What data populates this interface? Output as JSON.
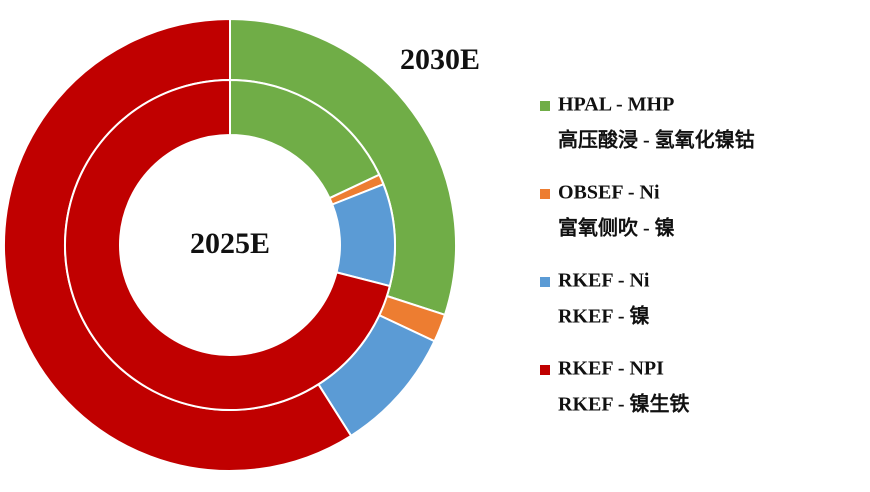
{
  "chart_data": {
    "type": "donut",
    "categories": [
      "HPAL - MHP",
      "OBSEF - Ni",
      "RKEF - Ni",
      "RKEF - NPI"
    ],
    "category_subtitles": [
      "高压酸浸 - 氢氧化镍钴",
      "富氧侧吹 - 镍",
      "RKEF - 镍",
      "RKEF - 镍生铁"
    ],
    "colors": [
      "#70ad47",
      "#ed7d31",
      "#5b9bd5",
      "#c00000"
    ],
    "series": [
      {
        "name": "2030E",
        "ring": "outer",
        "values": [
          30,
          2,
          9,
          59
        ]
      },
      {
        "name": "2025E",
        "ring": "inner",
        "values": [
          18,
          1,
          10,
          71
        ]
      }
    ]
  }
}
